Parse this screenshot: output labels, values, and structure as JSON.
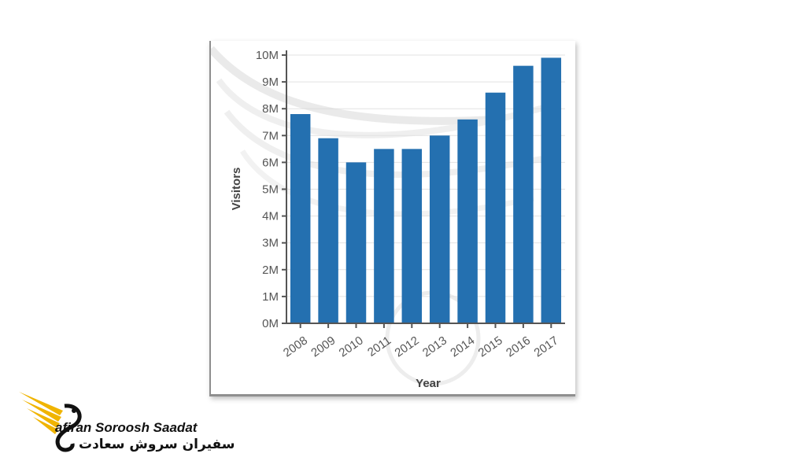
{
  "chart_data": {
    "type": "bar",
    "title": "",
    "xlabel": "Year",
    "ylabel": "Visitors",
    "categories": [
      "2008",
      "2009",
      "2010",
      "2011",
      "2012",
      "2013",
      "2014",
      "2015",
      "2016",
      "2017"
    ],
    "values": [
      7.8,
      6.9,
      6.0,
      6.5,
      6.5,
      7.0,
      7.6,
      8.6,
      9.6,
      9.9
    ],
    "unit": "M",
    "ylim": [
      0,
      10
    ],
    "yticks": [
      "0M",
      "1M",
      "2M",
      "3M",
      "4M",
      "5M",
      "6M",
      "7M",
      "8M",
      "9M",
      "10M"
    ],
    "grid": true,
    "bar_color": "#2470b0"
  },
  "watermark": {
    "brand_latin": "afiran Soroosh Saadat",
    "brand_farsi": "سفیران سروش سعادت"
  },
  "colors": {
    "logo_gold": "#f0b400",
    "logo_dark": "#111111",
    "frame_border": "#8f8f8f"
  }
}
